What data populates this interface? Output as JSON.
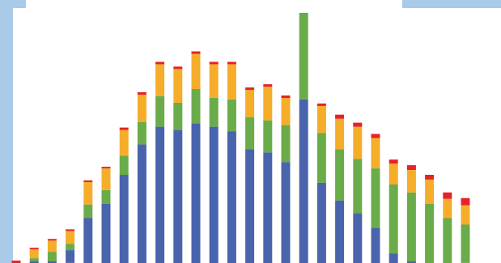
{
  "chart_data": {
    "type": "bar",
    "stacked": true,
    "grid": false,
    "legend": "none",
    "title": "",
    "xlabel": "",
    "ylabel": "",
    "ylim": [
      0,
      320
    ],
    "colors": {
      "blue": "#4a63ad",
      "green": "#6aac49",
      "orange": "#f5ad2a",
      "red": "#e8202a"
    },
    "series": [
      {
        "key": "blue",
        "values": [
          0,
          2,
          2,
          16,
          56,
          74,
          110,
          148,
          170,
          166,
          174,
          170,
          164,
          142,
          138,
          126,
          204,
          100,
          78,
          62,
          44,
          12,
          2,
          0,
          0,
          0
        ]
      },
      {
        "key": "green",
        "values": [
          0,
          4,
          12,
          8,
          17,
          17,
          24,
          28,
          38,
          34,
          43,
          36,
          40,
          40,
          40,
          46,
          108,
          62,
          64,
          68,
          74,
          86,
          86,
          74,
          56,
          48
        ]
      },
      {
        "key": "orange",
        "values": [
          0,
          11,
          14,
          16,
          28,
          27,
          32,
          34,
          40,
          42,
          44,
          42,
          44,
          34,
          42,
          34,
          0,
          34,
          38,
          40,
          38,
          26,
          28,
          30,
          24,
          24
        ]
      },
      {
        "key": "red",
        "values": [
          3,
          2,
          2,
          2,
          2,
          2,
          3,
          3,
          3,
          3,
          3,
          3,
          3,
          3,
          3,
          3,
          0,
          3,
          5,
          5,
          5,
          5,
          6,
          6,
          8,
          9
        ]
      }
    ]
  }
}
